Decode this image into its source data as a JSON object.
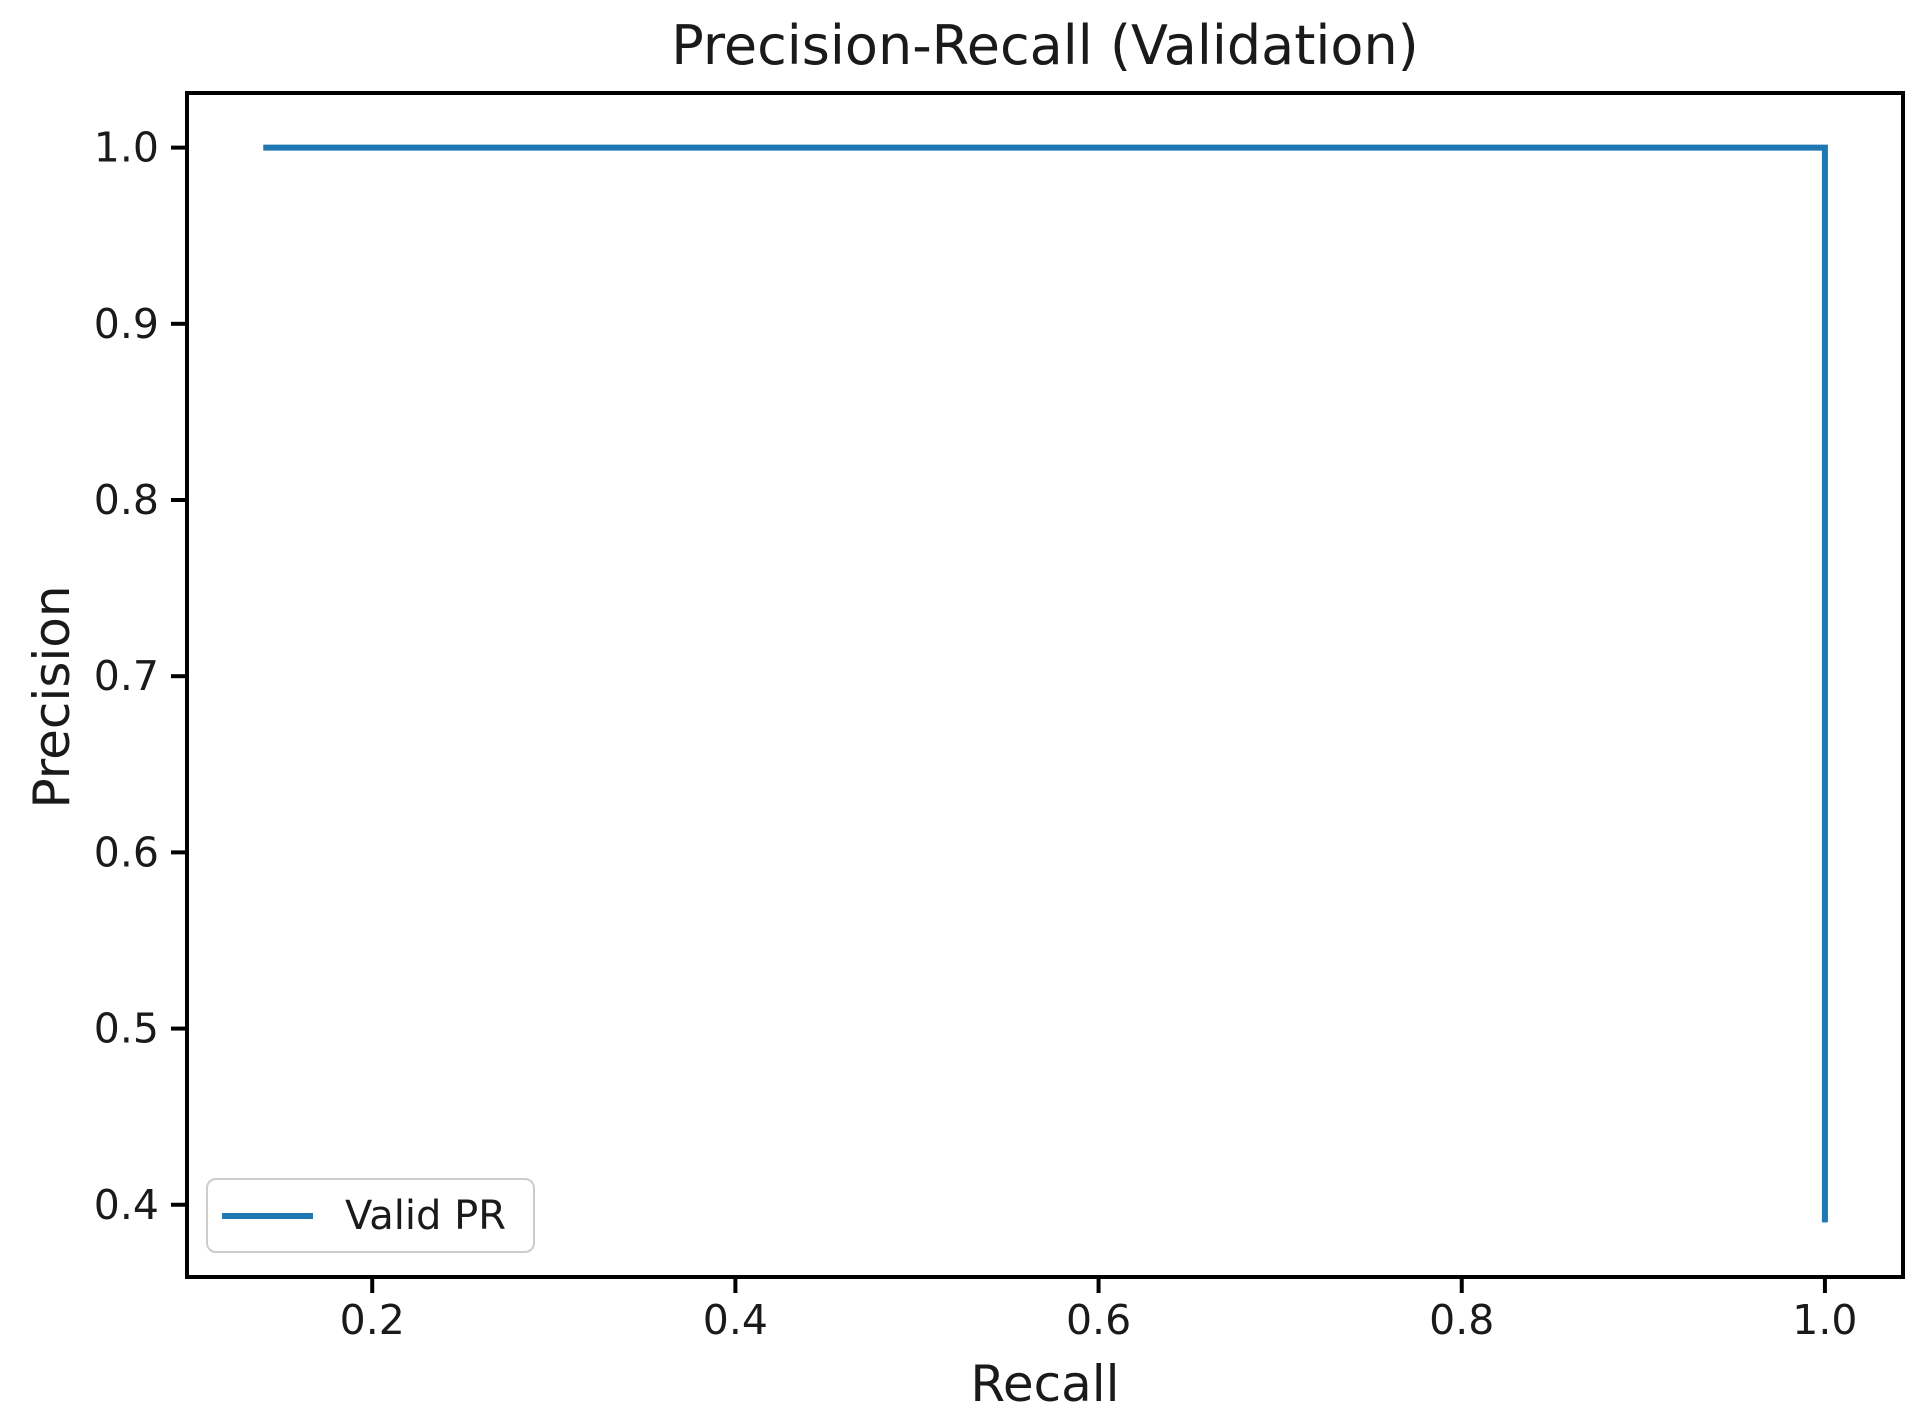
{
  "chart_data": {
    "type": "line",
    "title": "Precision-Recall (Validation)",
    "xlabel": "Recall",
    "ylabel": "Precision",
    "xlim": [
      0.098,
      1.043
    ],
    "ylim": [
      0.359,
      1.031
    ],
    "xticks": [
      0.2,
      0.4,
      0.6,
      0.8,
      1.0
    ],
    "yticks": [
      0.4,
      0.5,
      0.6,
      0.7,
      0.8,
      0.9,
      1.0
    ],
    "tick_decimals": 1,
    "grid": false,
    "legend_position": "lower left",
    "series": [
      {
        "name": "Valid PR",
        "color": "#1f77b4",
        "points": [
          [
            0.14,
            1.0
          ],
          [
            1.0,
            1.0
          ],
          [
            1.0,
            0.39
          ]
        ]
      }
    ],
    "colors": {
      "line": "#1f77b4",
      "spine": "#000000",
      "text": "#1a1a1a",
      "legend_border": "#cccccc",
      "background": "#ffffff"
    }
  }
}
